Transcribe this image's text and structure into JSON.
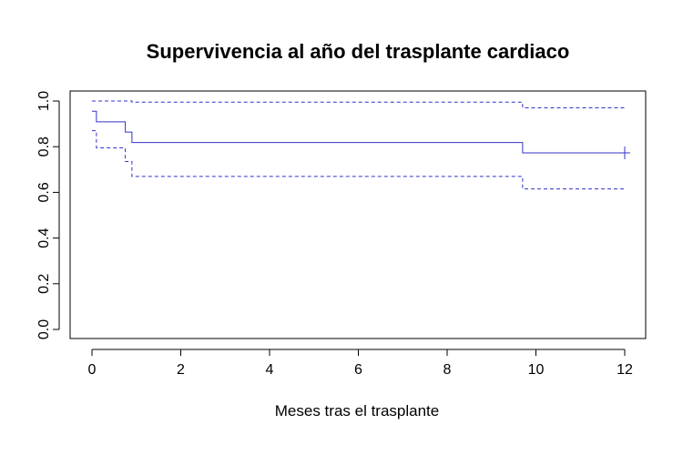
{
  "chart_data": {
    "type": "line",
    "title": "Supervivencia al año del trasplante cardiaco",
    "xlabel": "Meses tras el trasplante",
    "ylabel": "",
    "xlim": [
      0,
      12
    ],
    "ylim": [
      0,
      1
    ],
    "x_ticks": [
      0,
      2,
      4,
      6,
      8,
      10,
      12
    ],
    "y_ticks": [
      0.0,
      0.2,
      0.4,
      0.6,
      0.8,
      1.0
    ],
    "x_tick_labels": [
      "0",
      "2",
      "4",
      "6",
      "8",
      "10",
      "12"
    ],
    "y_tick_labels": [
      "0.0",
      "0.2",
      "0.4",
      "0.6",
      "0.8",
      "1.0"
    ],
    "grid": false,
    "line_color": "#3333cc",
    "series": [
      {
        "role": "estimate",
        "line_style": "solid",
        "step": true,
        "points": [
          [
            0,
            0.955
          ],
          [
            0.1,
            0.909
          ],
          [
            0.75,
            0.864
          ],
          [
            0.9,
            0.818
          ],
          [
            9.7,
            0.818
          ],
          [
            9.7,
            0.773
          ],
          [
            12,
            0.773
          ]
        ],
        "censor_marks": [
          12
        ]
      },
      {
        "role": "upper",
        "line_style": "dashed",
        "step": true,
        "points": [
          [
            0,
            1.0
          ],
          [
            0.9,
            1.0
          ],
          [
            0.9,
            0.995
          ],
          [
            9.7,
            0.995
          ],
          [
            9.7,
            0.97
          ],
          [
            12,
            0.97
          ]
        ],
        "censor_marks": []
      },
      {
        "role": "lower",
        "line_style": "dashed",
        "step": true,
        "points": [
          [
            0,
            0.87
          ],
          [
            0.1,
            0.87
          ],
          [
            0.1,
            0.795
          ],
          [
            0.75,
            0.795
          ],
          [
            0.75,
            0.735
          ],
          [
            0.9,
            0.735
          ],
          [
            0.9,
            0.67
          ],
          [
            9.7,
            0.67
          ],
          [
            9.7,
            0.615
          ],
          [
            12,
            0.615
          ]
        ],
        "censor_marks": []
      }
    ]
  }
}
